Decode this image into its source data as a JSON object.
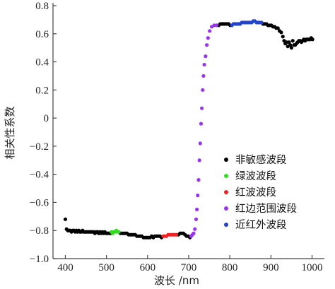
{
  "chart_data": {
    "type": "scatter",
    "title": "",
    "xlabel": "波长 /nm",
    "ylabel": "相关性系数",
    "xlim": [
      370,
      1030
    ],
    "ylim": [
      -1.0,
      0.8
    ],
    "x_ticks": [
      400,
      500,
      600,
      700,
      800,
      900,
      1000
    ],
    "y_ticks": [
      -1.0,
      -0.8,
      -0.6,
      -0.4,
      -0.2,
      0,
      0.2,
      0.4,
      0.6,
      0.8
    ],
    "y_tick_labels": [
      "−1.0",
      "−0.8",
      "−0.6",
      "−0.4",
      "−0.2",
      "0",
      "0.2",
      "0.4",
      "0.6",
      "0.8"
    ],
    "grid": false,
    "legend_position": "lower-right",
    "series": [
      {
        "name": "非敏感波段",
        "color": "#000000",
        "points": [
          [
            400,
            -0.72
          ],
          [
            403,
            -0.79
          ],
          [
            406,
            -0.8
          ],
          [
            409,
            -0.8
          ],
          [
            412,
            -0.8
          ],
          [
            415,
            -0.81
          ],
          [
            418,
            -0.8
          ],
          [
            421,
            -0.8
          ],
          [
            424,
            -0.81
          ],
          [
            427,
            -0.8
          ],
          [
            430,
            -0.81
          ],
          [
            433,
            -0.8
          ],
          [
            436,
            -0.81
          ],
          [
            439,
            -0.81
          ],
          [
            442,
            -0.8
          ],
          [
            445,
            -0.81
          ],
          [
            448,
            -0.81
          ],
          [
            451,
            -0.81
          ],
          [
            454,
            -0.81
          ],
          [
            457,
            -0.81
          ],
          [
            460,
            -0.81
          ],
          [
            463,
            -0.81
          ],
          [
            466,
            -0.81
          ],
          [
            469,
            -0.81
          ],
          [
            472,
            -0.82
          ],
          [
            475,
            -0.81
          ],
          [
            478,
            -0.81
          ],
          [
            481,
            -0.82
          ],
          [
            484,
            -0.81
          ],
          [
            487,
            -0.82
          ],
          [
            490,
            -0.81
          ],
          [
            493,
            -0.82
          ],
          [
            496,
            -0.81
          ],
          [
            499,
            -0.82
          ],
          [
            502,
            -0.82
          ],
          [
            505,
            -0.82
          ],
          [
            508,
            -0.82
          ],
          [
            511,
            -0.82
          ],
          [
            534,
            -0.82
          ],
          [
            538,
            -0.82
          ],
          [
            542,
            -0.82
          ],
          [
            546,
            -0.82
          ],
          [
            550,
            -0.82
          ],
          [
            554,
            -0.83
          ],
          [
            558,
            -0.83
          ],
          [
            562,
            -0.83
          ],
          [
            566,
            -0.83
          ],
          [
            570,
            -0.83
          ],
          [
            574,
            -0.84
          ],
          [
            578,
            -0.84
          ],
          [
            582,
            -0.84
          ],
          [
            586,
            -0.84
          ],
          [
            590,
            -0.85
          ],
          [
            594,
            -0.85
          ],
          [
            598,
            -0.85
          ],
          [
            602,
            -0.85
          ],
          [
            606,
            -0.85
          ],
          [
            610,
            -0.84
          ],
          [
            614,
            -0.85
          ],
          [
            618,
            -0.84
          ],
          [
            622,
            -0.84
          ],
          [
            626,
            -0.84
          ],
          [
            630,
            -0.84
          ],
          [
            634,
            -0.85
          ],
          [
            675,
            -0.83
          ],
          [
            679,
            -0.82
          ],
          [
            683,
            -0.82
          ],
          [
            687,
            -0.82
          ],
          [
            691,
            -0.83
          ],
          [
            695,
            -0.84
          ],
          [
            699,
            -0.84
          ],
          [
            703,
            -0.85
          ],
          [
            773,
            0.66
          ],
          [
            777,
            0.67
          ],
          [
            781,
            0.67
          ],
          [
            785,
            0.67
          ],
          [
            789,
            0.67
          ],
          [
            793,
            0.67
          ],
          [
            797,
            0.67
          ],
          [
            801,
            0.66
          ],
          [
            881,
            0.67
          ],
          [
            885,
            0.67
          ],
          [
            889,
            0.67
          ],
          [
            893,
            0.66
          ],
          [
            897,
            0.66
          ],
          [
            901,
            0.66
          ],
          [
            905,
            0.65
          ],
          [
            909,
            0.65
          ],
          [
            913,
            0.64
          ],
          [
            917,
            0.64
          ],
          [
            921,
            0.62
          ],
          [
            925,
            0.61
          ],
          [
            929,
            0.58
          ],
          [
            932,
            0.55
          ],
          [
            935,
            0.53
          ],
          [
            938,
            0.54
          ],
          [
            941,
            0.51
          ],
          [
            944,
            0.54
          ],
          [
            947,
            0.52
          ],
          [
            950,
            0.5
          ],
          [
            953,
            0.55
          ],
          [
            956,
            0.52
          ],
          [
            959,
            0.52
          ],
          [
            962,
            0.53
          ],
          [
            965,
            0.54
          ],
          [
            968,
            0.55
          ],
          [
            971,
            0.55
          ],
          [
            974,
            0.54
          ],
          [
            977,
            0.55
          ],
          [
            980,
            0.56
          ],
          [
            983,
            0.55
          ],
          [
            986,
            0.56
          ],
          [
            989,
            0.56
          ],
          [
            992,
            0.56
          ],
          [
            995,
            0.56
          ],
          [
            998,
            0.57
          ],
          [
            1001,
            0.56
          ]
        ]
      },
      {
        "name": "绿波波段",
        "color": "#33dd22",
        "points": [
          [
            512,
            -0.81
          ],
          [
            515,
            -0.82
          ],
          [
            518,
            -0.81
          ],
          [
            521,
            -0.81
          ],
          [
            524,
            -0.8
          ],
          [
            527,
            -0.81
          ],
          [
            530,
            -0.81
          ]
        ]
      },
      {
        "name": "红波波段",
        "color": "#ee2222",
        "points": [
          [
            638,
            -0.84
          ],
          [
            642,
            -0.84
          ],
          [
            646,
            -0.84
          ],
          [
            650,
            -0.83
          ],
          [
            654,
            -0.83
          ],
          [
            658,
            -0.83
          ],
          [
            662,
            -0.83
          ],
          [
            666,
            -0.83
          ],
          [
            670,
            -0.83
          ]
        ]
      },
      {
        "name": "红边范围波段",
        "color": "#9933ee",
        "points": [
          [
            706,
            -0.84
          ],
          [
            709,
            -0.83
          ],
          [
            712,
            -0.82
          ],
          [
            715,
            -0.79
          ],
          [
            718,
            -0.72
          ],
          [
            720,
            -0.65
          ],
          [
            722,
            -0.55
          ],
          [
            724,
            -0.44
          ],
          [
            726,
            -0.3
          ],
          [
            728,
            -0.18
          ],
          [
            730,
            -0.04
          ],
          [
            732,
            0.07
          ],
          [
            734,
            0.2
          ],
          [
            736,
            0.3
          ],
          [
            738,
            0.38
          ],
          [
            741,
            0.44
          ],
          [
            744,
            0.52
          ],
          [
            747,
            0.57
          ],
          [
            751,
            0.62
          ],
          [
            756,
            0.65
          ],
          [
            762,
            0.66
          ],
          [
            768,
            0.66
          ]
        ]
      },
      {
        "name": "近红外波段",
        "color": "#2244cc",
        "points": [
          [
            805,
            0.66
          ],
          [
            809,
            0.67
          ],
          [
            813,
            0.67
          ],
          [
            817,
            0.67
          ],
          [
            821,
            0.67
          ],
          [
            825,
            0.67
          ],
          [
            829,
            0.68
          ],
          [
            833,
            0.68
          ],
          [
            837,
            0.68
          ],
          [
            841,
            0.68
          ],
          [
            845,
            0.68
          ],
          [
            849,
            0.68
          ],
          [
            853,
            0.68
          ],
          [
            857,
            0.69
          ],
          [
            861,
            0.69
          ],
          [
            865,
            0.68
          ],
          [
            869,
            0.68
          ],
          [
            873,
            0.68
          ],
          [
            877,
            0.68
          ]
        ]
      }
    ]
  }
}
